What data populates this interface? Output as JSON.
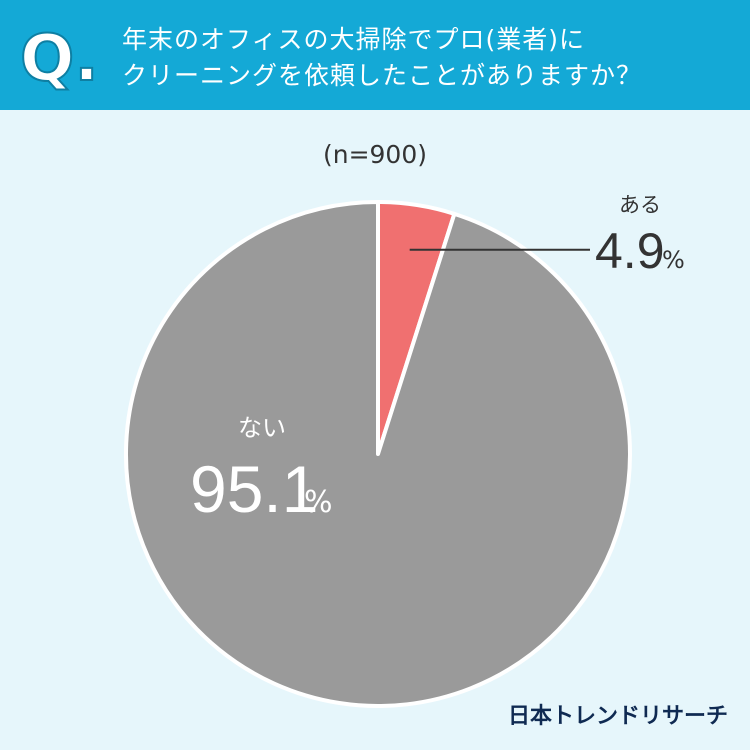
{
  "question": {
    "mark": "Q.",
    "line1": "年末のオフィスの大掃除でプロ(業者)に",
    "line2": "クリーニングを依頼したことがありますか？"
  },
  "sample_size": "(n=900)",
  "brand": "日本トレンドリサーチ",
  "colors": {
    "header": "#14a9d6",
    "background": "#e6f6fb",
    "yes": "#f07070",
    "no": "#9a9a9a"
  },
  "chart_data": {
    "type": "pie",
    "title": "",
    "slices": [
      {
        "label": "ある",
        "value": 4.9,
        "display": "4.9",
        "unit": "%"
      },
      {
        "label": "ない",
        "value": 95.1,
        "display": "95.1",
        "unit": "%"
      }
    ]
  }
}
